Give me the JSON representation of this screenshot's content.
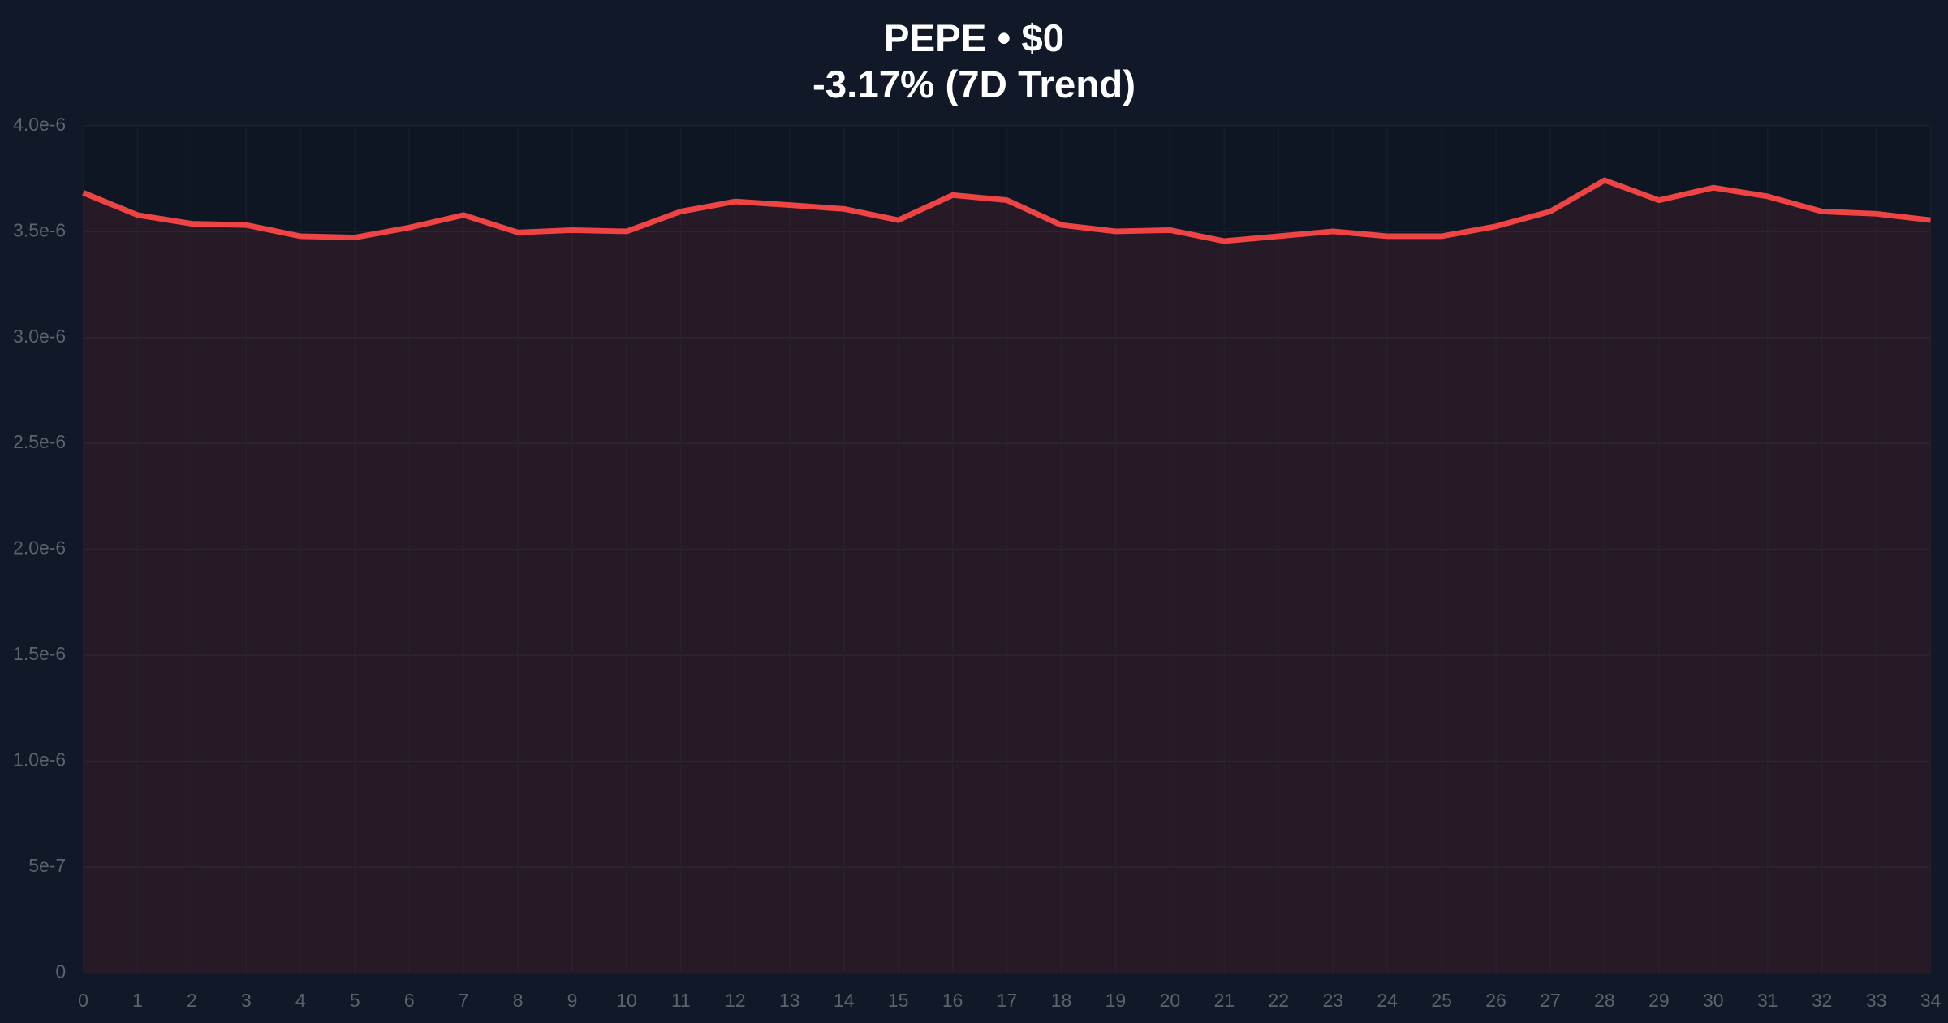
{
  "chart_data": {
    "type": "area",
    "title": "PEPE • $0",
    "subtitle": "-3.17% (7D Trend)",
    "x": [
      0,
      1,
      2,
      3,
      4,
      5,
      6,
      7,
      8,
      9,
      10,
      11,
      12,
      13,
      14,
      15,
      16,
      17,
      18,
      19,
      20,
      21,
      22,
      23,
      24,
      25,
      26,
      27,
      28,
      29,
      30,
      31,
      32,
      33,
      34
    ],
    "series": [
      {
        "color": "#ef4444",
        "values": [
          3.683e-06,
          3.578e-06,
          3.537e-06,
          3.531e-06,
          3.478e-06,
          3.472e-06,
          3.519e-06,
          3.578e-06,
          3.496e-06,
          3.507e-06,
          3.501e-06,
          3.595e-06,
          3.642e-06,
          3.625e-06,
          3.607e-06,
          3.554e-06,
          3.672e-06,
          3.648e-06,
          3.531e-06,
          3.501e-06,
          3.507e-06,
          3.455e-06,
          3.478e-06,
          3.501e-06,
          3.478e-06,
          3.478e-06,
          3.525e-06,
          3.595e-06,
          3.742e-06,
          3.648e-06,
          3.707e-06,
          3.666e-06,
          3.595e-06,
          3.584e-06,
          3.554e-06
        ]
      }
    ],
    "xlim": [
      0,
      34
    ],
    "xticks": [
      0,
      1,
      2,
      3,
      4,
      5,
      6,
      7,
      8,
      9,
      10,
      11,
      12,
      13,
      14,
      15,
      16,
      17,
      18,
      19,
      20,
      21,
      22,
      23,
      24,
      25,
      26,
      27,
      28,
      29,
      30,
      31,
      32,
      33,
      34
    ],
    "ylim": [
      0,
      4e-06
    ],
    "yticks": [
      0,
      {
        "value": 5e-07,
        "label": "5e-7"
      },
      {
        "value": 1e-06,
        "label": "1.0e-6"
      },
      {
        "value": 1.5e-06,
        "label": "1.5e-6"
      },
      {
        "value": 2e-06,
        "label": "2.0e-6"
      },
      {
        "value": 2.5e-06,
        "label": "2.5e-6"
      },
      {
        "value": 3e-06,
        "label": "3.0e-6"
      },
      {
        "value": 3.5e-06,
        "label": "3.5e-6"
      },
      {
        "value": 4e-06,
        "label": "4.0e-6"
      }
    ],
    "grid": true
  }
}
